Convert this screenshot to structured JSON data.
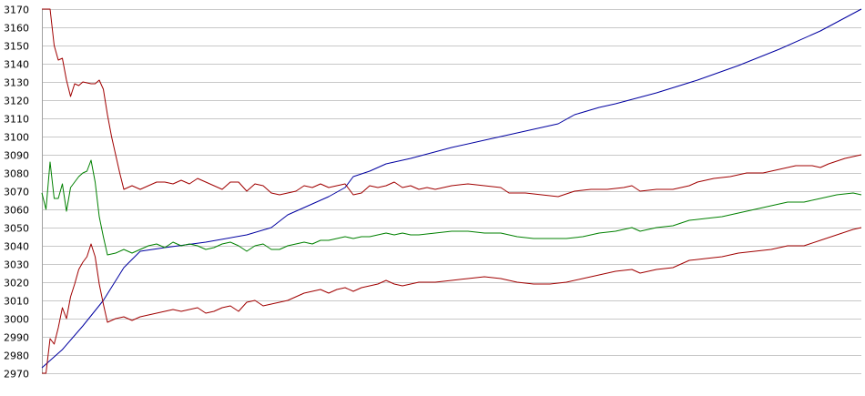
{
  "chart_data": {
    "type": "line",
    "title": "",
    "xlabel": "",
    "ylabel": "",
    "ylim": [
      2970,
      3170
    ],
    "yticks": [
      3170,
      3160,
      3150,
      3140,
      3130,
      3120,
      3110,
      3100,
      3090,
      3080,
      3070,
      3060,
      3050,
      3040,
      3030,
      3020,
      3010,
      3000,
      2990,
      2980,
      2970
    ],
    "xlim": [
      0,
      200
    ],
    "grid": true,
    "legend": "none",
    "series": [
      {
        "color": "#0000a0",
        "points": [
          [
            0,
            2973
          ],
          [
            5,
            2983
          ],
          [
            10,
            2996
          ],
          [
            15,
            3010
          ],
          [
            20,
            3028
          ],
          [
            24,
            3037
          ],
          [
            30,
            3039
          ],
          [
            40,
            3042
          ],
          [
            50,
            3046
          ],
          [
            56,
            3050
          ],
          [
            60,
            3057
          ],
          [
            66,
            3063
          ],
          [
            70,
            3067
          ],
          [
            74,
            3072
          ],
          [
            76,
            3078
          ],
          [
            80,
            3081
          ],
          [
            84,
            3085
          ],
          [
            90,
            3088
          ],
          [
            100,
            3094
          ],
          [
            110,
            3099
          ],
          [
            120,
            3104
          ],
          [
            126,
            3107
          ],
          [
            130,
            3112
          ],
          [
            136,
            3116
          ],
          [
            140,
            3118
          ],
          [
            150,
            3124
          ],
          [
            160,
            3131
          ],
          [
            170,
            3139
          ],
          [
            180,
            3148
          ],
          [
            190,
            3158
          ],
          [
            200,
            3170
          ]
        ]
      },
      {
        "color": "#a00000",
        "points": [
          [
            0,
            3170
          ],
          [
            2,
            3170
          ],
          [
            3,
            3150
          ],
          [
            4,
            3142
          ],
          [
            5,
            3143
          ],
          [
            6,
            3131
          ],
          [
            7,
            3122
          ],
          [
            8,
            3129
          ],
          [
            9,
            3128
          ],
          [
            10,
            3130
          ],
          [
            12,
            3129
          ],
          [
            13,
            3129
          ],
          [
            14,
            3131
          ],
          [
            15,
            3126
          ],
          [
            16,
            3112
          ],
          [
            17,
            3100
          ],
          [
            18,
            3090
          ],
          [
            19,
            3080
          ],
          [
            20,
            3071
          ],
          [
            22,
            3073
          ],
          [
            24,
            3071
          ],
          [
            26,
            3073
          ],
          [
            28,
            3075
          ],
          [
            30,
            3075
          ],
          [
            32,
            3074
          ],
          [
            34,
            3076
          ],
          [
            36,
            3074
          ],
          [
            38,
            3077
          ],
          [
            40,
            3075
          ],
          [
            42,
            3073
          ],
          [
            44,
            3071
          ],
          [
            46,
            3075
          ],
          [
            48,
            3075
          ],
          [
            50,
            3070
          ],
          [
            52,
            3074
          ],
          [
            54,
            3073
          ],
          [
            56,
            3069
          ],
          [
            58,
            3068
          ],
          [
            60,
            3069
          ],
          [
            62,
            3070
          ],
          [
            64,
            3073
          ],
          [
            66,
            3072
          ],
          [
            68,
            3074
          ],
          [
            70,
            3072
          ],
          [
            72,
            3073
          ],
          [
            74,
            3074
          ],
          [
            76,
            3068
          ],
          [
            78,
            3069
          ],
          [
            80,
            3073
          ],
          [
            82,
            3072
          ],
          [
            84,
            3073
          ],
          [
            86,
            3075
          ],
          [
            88,
            3072
          ],
          [
            90,
            3073
          ],
          [
            92,
            3071
          ],
          [
            94,
            3072
          ],
          [
            96,
            3071
          ],
          [
            98,
            3072
          ],
          [
            100,
            3073
          ],
          [
            104,
            3074
          ],
          [
            108,
            3073
          ],
          [
            112,
            3072
          ],
          [
            114,
            3069
          ],
          [
            118,
            3069
          ],
          [
            122,
            3068
          ],
          [
            126,
            3067
          ],
          [
            130,
            3070
          ],
          [
            134,
            3071
          ],
          [
            138,
            3071
          ],
          [
            142,
            3072
          ],
          [
            144,
            3073
          ],
          [
            146,
            3070
          ],
          [
            150,
            3071
          ],
          [
            154,
            3071
          ],
          [
            158,
            3073
          ],
          [
            160,
            3075
          ],
          [
            164,
            3077
          ],
          [
            168,
            3078
          ],
          [
            172,
            3080
          ],
          [
            176,
            3080
          ],
          [
            180,
            3082
          ],
          [
            184,
            3084
          ],
          [
            188,
            3084
          ],
          [
            190,
            3083
          ],
          [
            192,
            3085
          ],
          [
            196,
            3088
          ],
          [
            200,
            3090
          ]
        ]
      },
      {
        "color": "#008000",
        "points": [
          [
            0,
            3069
          ],
          [
            1,
            3060
          ],
          [
            2,
            3086
          ],
          [
            3,
            3066
          ],
          [
            4,
            3066
          ],
          [
            5,
            3074
          ],
          [
            6,
            3059
          ],
          [
            7,
            3072
          ],
          [
            8,
            3075
          ],
          [
            9,
            3078
          ],
          [
            10,
            3080
          ],
          [
            11,
            3081
          ],
          [
            12,
            3087
          ],
          [
            13,
            3075
          ],
          [
            14,
            3056
          ],
          [
            15,
            3045
          ],
          [
            16,
            3035
          ],
          [
            18,
            3036
          ],
          [
            20,
            3038
          ],
          [
            22,
            3036
          ],
          [
            24,
            3038
          ],
          [
            26,
            3040
          ],
          [
            28,
            3041
          ],
          [
            30,
            3039
          ],
          [
            32,
            3042
          ],
          [
            34,
            3040
          ],
          [
            36,
            3041
          ],
          [
            38,
            3040
          ],
          [
            40,
            3038
          ],
          [
            42,
            3039
          ],
          [
            44,
            3041
          ],
          [
            46,
            3042
          ],
          [
            48,
            3040
          ],
          [
            50,
            3037
          ],
          [
            52,
            3040
          ],
          [
            54,
            3041
          ],
          [
            56,
            3038
          ],
          [
            58,
            3038
          ],
          [
            60,
            3040
          ],
          [
            62,
            3041
          ],
          [
            64,
            3042
          ],
          [
            66,
            3041
          ],
          [
            68,
            3043
          ],
          [
            70,
            3043
          ],
          [
            72,
            3044
          ],
          [
            74,
            3045
          ],
          [
            76,
            3044
          ],
          [
            78,
            3045
          ],
          [
            80,
            3045
          ],
          [
            82,
            3046
          ],
          [
            84,
            3047
          ],
          [
            86,
            3046
          ],
          [
            88,
            3047
          ],
          [
            90,
            3046
          ],
          [
            92,
            3046
          ],
          [
            96,
            3047
          ],
          [
            100,
            3048
          ],
          [
            104,
            3048
          ],
          [
            108,
            3047
          ],
          [
            112,
            3047
          ],
          [
            116,
            3045
          ],
          [
            120,
            3044
          ],
          [
            124,
            3044
          ],
          [
            128,
            3044
          ],
          [
            132,
            3045
          ],
          [
            136,
            3047
          ],
          [
            140,
            3048
          ],
          [
            144,
            3050
          ],
          [
            146,
            3048
          ],
          [
            150,
            3050
          ],
          [
            154,
            3051
          ],
          [
            158,
            3054
          ],
          [
            162,
            3055
          ],
          [
            166,
            3056
          ],
          [
            170,
            3058
          ],
          [
            174,
            3060
          ],
          [
            178,
            3062
          ],
          [
            182,
            3064
          ],
          [
            186,
            3064
          ],
          [
            190,
            3066
          ],
          [
            194,
            3068
          ],
          [
            198,
            3069
          ],
          [
            200,
            3068
          ]
        ]
      },
      {
        "color": "#a00000",
        "points": [
          [
            0,
            2970
          ],
          [
            1,
            2970
          ],
          [
            2,
            2989
          ],
          [
            3,
            2986
          ],
          [
            4,
            2995
          ],
          [
            5,
            3006
          ],
          [
            6,
            3000
          ],
          [
            7,
            3012
          ],
          [
            8,
            3019
          ],
          [
            9,
            3027
          ],
          [
            10,
            3031
          ],
          [
            11,
            3034
          ],
          [
            12,
            3041
          ],
          [
            13,
            3034
          ],
          [
            14,
            3019
          ],
          [
            15,
            3008
          ],
          [
            16,
            2998
          ],
          [
            18,
            3000
          ],
          [
            20,
            3001
          ],
          [
            22,
            2999
          ],
          [
            24,
            3001
          ],
          [
            26,
            3002
          ],
          [
            28,
            3003
          ],
          [
            30,
            3004
          ],
          [
            32,
            3005
          ],
          [
            34,
            3004
          ],
          [
            36,
            3005
          ],
          [
            38,
            3006
          ],
          [
            40,
            3003
          ],
          [
            42,
            3004
          ],
          [
            44,
            3006
          ],
          [
            46,
            3007
          ],
          [
            48,
            3004
          ],
          [
            50,
            3009
          ],
          [
            52,
            3010
          ],
          [
            54,
            3007
          ],
          [
            56,
            3008
          ],
          [
            58,
            3009
          ],
          [
            60,
            3010
          ],
          [
            62,
            3012
          ],
          [
            64,
            3014
          ],
          [
            66,
            3015
          ],
          [
            68,
            3016
          ],
          [
            70,
            3014
          ],
          [
            72,
            3016
          ],
          [
            74,
            3017
          ],
          [
            76,
            3015
          ],
          [
            78,
            3017
          ],
          [
            80,
            3018
          ],
          [
            82,
            3019
          ],
          [
            84,
            3021
          ],
          [
            86,
            3019
          ],
          [
            88,
            3018
          ],
          [
            90,
            3019
          ],
          [
            92,
            3020
          ],
          [
            96,
            3020
          ],
          [
            100,
            3021
          ],
          [
            104,
            3022
          ],
          [
            108,
            3023
          ],
          [
            112,
            3022
          ],
          [
            116,
            3020
          ],
          [
            120,
            3019
          ],
          [
            124,
            3019
          ],
          [
            128,
            3020
          ],
          [
            132,
            3022
          ],
          [
            136,
            3024
          ],
          [
            140,
            3026
          ],
          [
            144,
            3027
          ],
          [
            146,
            3025
          ],
          [
            150,
            3027
          ],
          [
            154,
            3028
          ],
          [
            158,
            3032
          ],
          [
            162,
            3033
          ],
          [
            166,
            3034
          ],
          [
            170,
            3036
          ],
          [
            174,
            3037
          ],
          [
            178,
            3038
          ],
          [
            182,
            3040
          ],
          [
            186,
            3040
          ],
          [
            190,
            3043
          ],
          [
            194,
            3046
          ],
          [
            198,
            3049
          ],
          [
            200,
            3050
          ]
        ]
      }
    ]
  }
}
